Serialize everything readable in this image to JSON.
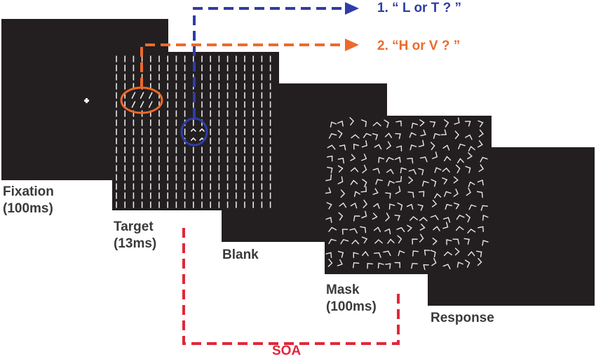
{
  "frames": [
    {
      "label_line1": "Fixation",
      "label_line2": "(100ms)"
    },
    {
      "label_line1": "Target",
      "label_line2": "(13ms)"
    },
    {
      "label_line1": "Blank",
      "label_line2": ""
    },
    {
      "label_line1": "Mask",
      "label_line2": "(100ms)"
    },
    {
      "label_line1": "Response",
      "label_line2": ""
    }
  ],
  "questions": {
    "q1": "1. “ L or T ? ”",
    "q2": "2. “H or V ? ”"
  },
  "soa_label": "SOA",
  "colors": {
    "frame": "#231f20",
    "blue": "#2e3da6",
    "orange": "#ee6a2a",
    "red": "#e3263a",
    "label": "#3a3a3a"
  }
}
